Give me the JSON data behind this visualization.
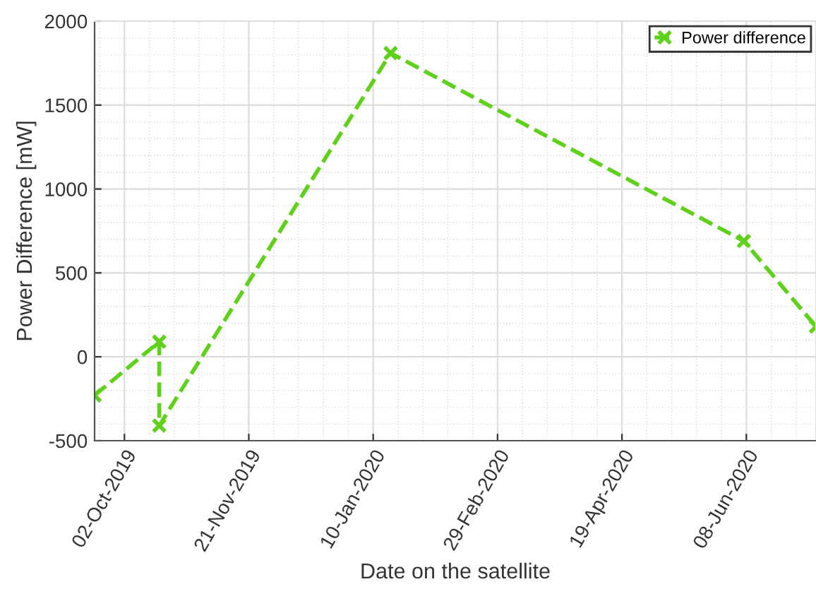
{
  "chart_data": {
    "type": "line",
    "xlabel": "Date on the satellite",
    "ylabel": "Power Difference [mW]",
    "x": [
      "2019-09-20",
      "2019-10-16",
      "2019-10-16",
      "2020-01-17",
      "2020-06-07",
      "2020-07-06"
    ],
    "series": [
      {
        "name": "Power difference",
        "color": "#5fd11a",
        "values": [
          -230,
          90,
          -410,
          1810,
          690,
          180
        ]
      }
    ],
    "xlim": [
      "2019-09-20",
      "2020-07-06"
    ],
    "xticks": [
      {
        "value": "2019-10-02",
        "label": "02-Oct-2019"
      },
      {
        "value": "2019-11-21",
        "label": "21-Nov-2019"
      },
      {
        "value": "2020-01-10",
        "label": "10-Jan-2020"
      },
      {
        "value": "2020-02-29",
        "label": "29-Feb-2020"
      },
      {
        "value": "2020-04-19",
        "label": "19-Apr-2020"
      },
      {
        "value": "2020-06-08",
        "label": "08-Jun-2020"
      }
    ],
    "ylim": [
      -500,
      2000
    ],
    "yticks": [
      -500,
      0,
      500,
      1000,
      1500,
      2000
    ],
    "grid": true,
    "legend": "top right",
    "marker": "cross",
    "line_style": "dashed"
  }
}
